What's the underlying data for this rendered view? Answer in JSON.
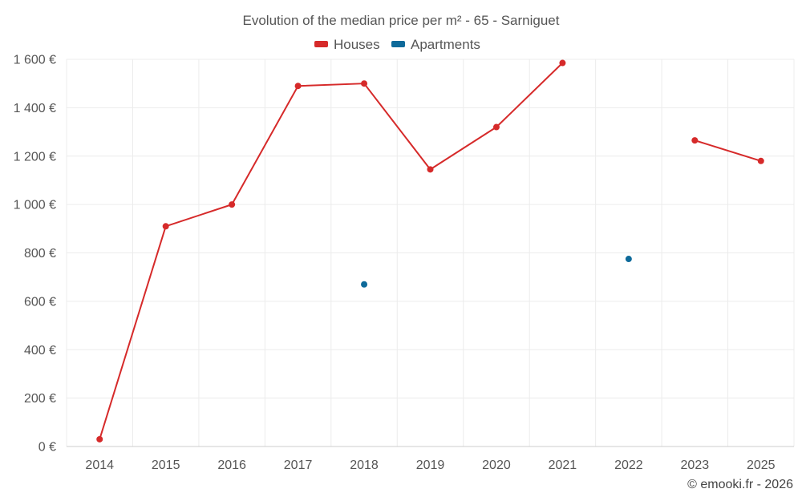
{
  "chart_data": {
    "type": "line",
    "title": "Evolution of the median price per m² - 65 - Sarniguet",
    "categories": [
      "2014",
      "2015",
      "2016",
      "2017",
      "2018",
      "2019",
      "2020",
      "2021",
      "2022",
      "2023",
      "2025"
    ],
    "ylim": [
      0,
      1600
    ],
    "yticks": [
      "0 €",
      "200 €",
      "400 €",
      "600 €",
      "800 €",
      "1 000 €",
      "1 200 €",
      "1 400 €",
      "1 600 €"
    ],
    "grid": true,
    "legend_position": "top-center",
    "series": [
      {
        "name": "Houses",
        "color": "#d62a2a",
        "values": [
          30,
          910,
          1000,
          1490,
          1500,
          1145,
          1320,
          1585,
          null,
          1265,
          1180
        ]
      },
      {
        "name": "Apartments",
        "color": "#0e6a9a",
        "values": [
          null,
          null,
          null,
          null,
          670,
          null,
          null,
          null,
          775,
          null,
          null
        ]
      }
    ]
  },
  "credit": "© emooki.fr - 2026"
}
